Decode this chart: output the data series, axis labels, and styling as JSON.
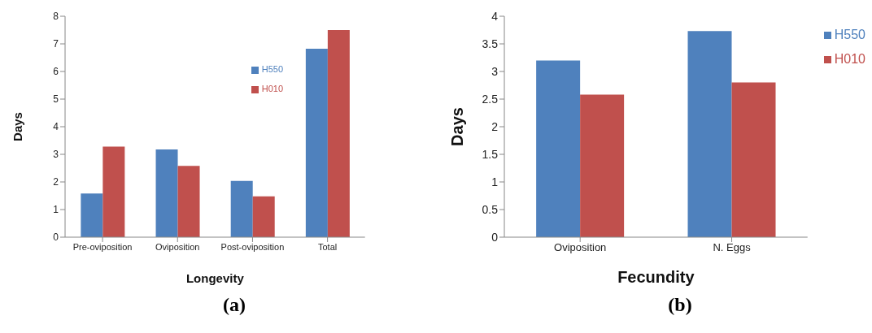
{
  "chart_data": [
    {
      "type": "bar",
      "categories": [
        "Pre-oviposition",
        "Oviposition",
        "Post-oviposition",
        "Total"
      ],
      "xlabel": "Longevity",
      "ylabel": "Days",
      "ylim": [
        0,
        8
      ],
      "yticks": [
        0,
        1,
        2,
        3,
        4,
        5,
        6,
        7,
        8
      ],
      "grid": false,
      "legend": "top right",
      "annotations": [
        "(a)"
      ],
      "series": [
        {
          "name": "H550",
          "color": "#4f81bd",
          "values": [
            1.58,
            3.18,
            2.04,
            6.82
          ]
        },
        {
          "name": "H010",
          "color": "#c0504d",
          "values": [
            3.28,
            2.58,
            1.48,
            7.5
          ]
        }
      ]
    },
    {
      "type": "bar",
      "categories": [
        "Oviposition",
        "N. Eggs"
      ],
      "xlabel": "Fecundity",
      "ylabel": "Days",
      "ylim": [
        0,
        4
      ],
      "yticks": [
        0,
        0.5,
        1,
        1.5,
        2,
        2.5,
        3,
        3.5,
        4
      ],
      "grid": false,
      "legend": "top right",
      "annotations": [
        "(b)"
      ],
      "series": [
        {
          "name": "H550",
          "color": "#4f81bd",
          "values": [
            3.2,
            3.73
          ]
        },
        {
          "name": "H010",
          "color": "#c0504d",
          "values": [
            2.58,
            2.8
          ]
        }
      ]
    }
  ]
}
